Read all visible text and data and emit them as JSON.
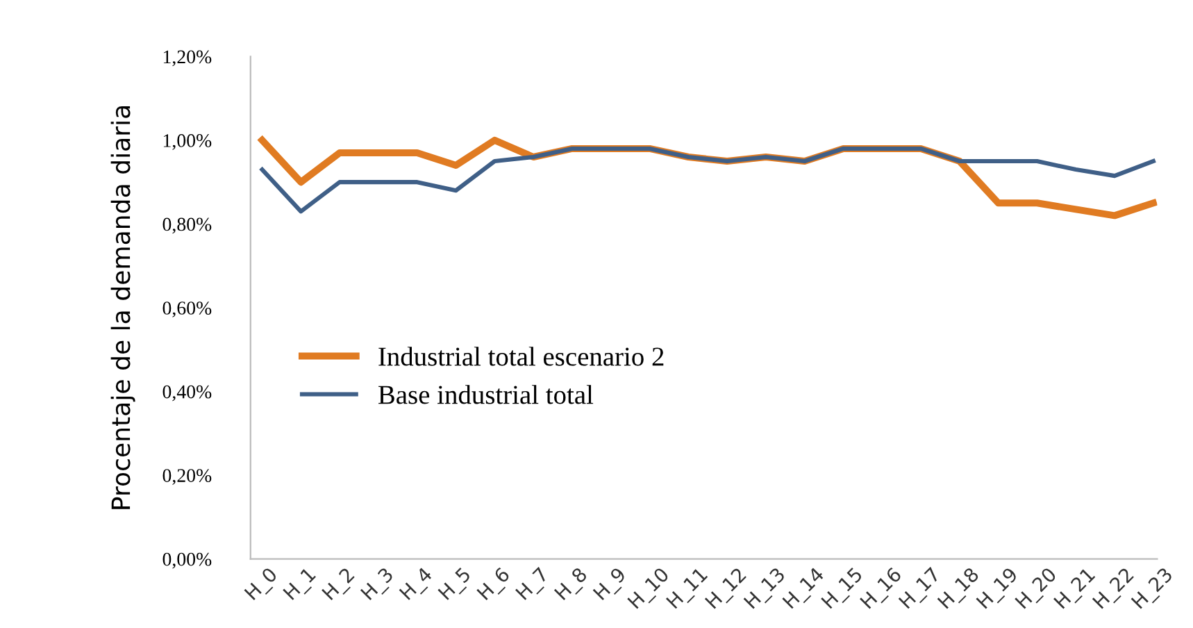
{
  "chart_data": {
    "type": "line",
    "ylabel": "Procentaje de la demanda diaria",
    "categories": [
      "H_0",
      "H_1",
      "H_2",
      "H_3",
      "H_4",
      "H_5",
      "H_6",
      "H_7",
      "H_8",
      "H_9",
      "H_10",
      "H_11",
      "H_12",
      "H_13",
      "H_14",
      "H_15",
      "H_16",
      "H_17",
      "H_18",
      "H_19",
      "H_20",
      "H_21",
      "H_22",
      "H_23"
    ],
    "series": [
      {
        "name": "Industrial total escenario 2",
        "color": "#e07b22",
        "values": [
          1.0,
          0.9,
          0.97,
          0.97,
          0.97,
          0.94,
          1.0,
          0.96,
          0.98,
          0.98,
          0.98,
          0.96,
          0.95,
          0.96,
          0.95,
          0.98,
          0.98,
          0.98,
          0.95,
          0.85,
          0.85,
          0.835,
          0.82,
          0.85
        ]
      },
      {
        "name": "Base industrial total",
        "color": "#3f5f87",
        "values": [
          0.93,
          0.83,
          0.9,
          0.9,
          0.9,
          0.88,
          0.95,
          0.96,
          0.98,
          0.98,
          0.98,
          0.96,
          0.95,
          0.96,
          0.95,
          0.98,
          0.98,
          0.98,
          0.95,
          0.95,
          0.95,
          0.93,
          0.915,
          0.95
        ]
      }
    ],
    "ylim": [
      0,
      1.2
    ],
    "yticks": [
      {
        "value": 0,
        "label": "0,00%"
      },
      {
        "value": 0.2,
        "label": "0,20%"
      },
      {
        "value": 0.4,
        "label": "0,40%"
      },
      {
        "value": 0.6,
        "label": "0,60%"
      },
      {
        "value": 0.8,
        "label": "0,80%"
      },
      {
        "value": 1.0,
        "label": "1,00%"
      },
      {
        "value": 1.2,
        "label": "1,20%"
      }
    ],
    "grid": false,
    "legend": "left",
    "marker": "none",
    "line_style": "solid"
  }
}
